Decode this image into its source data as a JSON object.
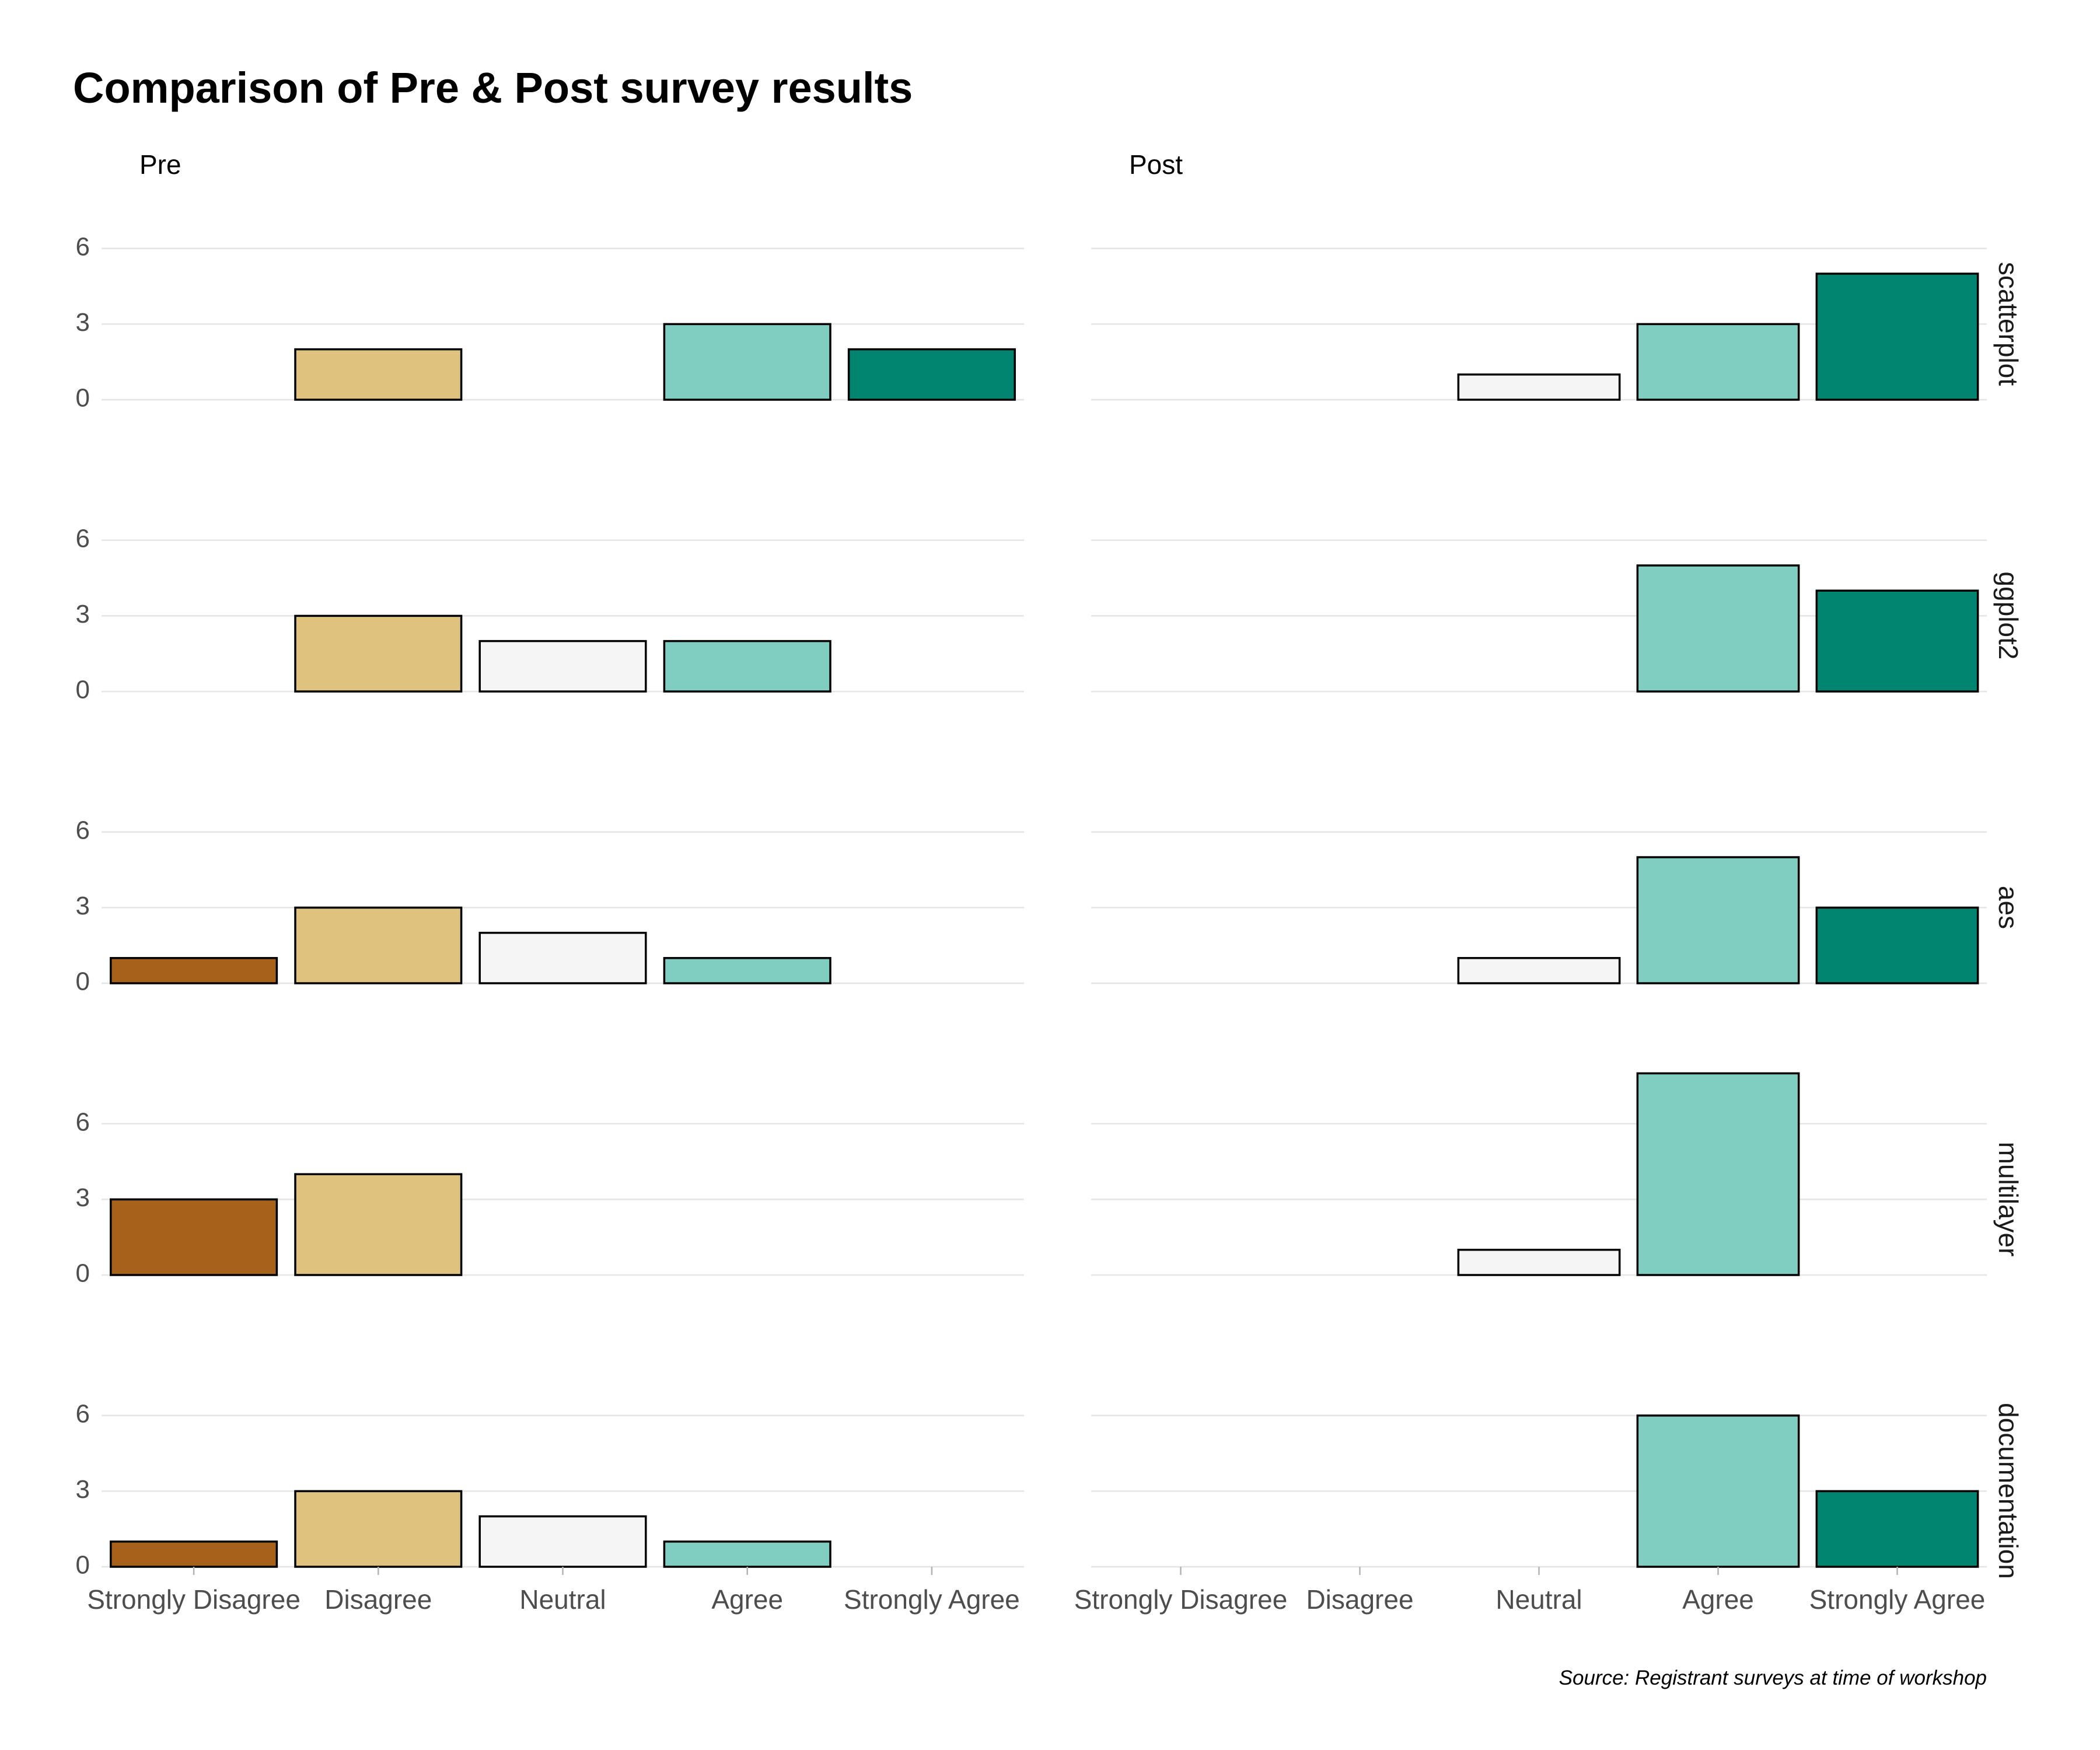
{
  "chart_data": {
    "type": "bar",
    "title": "Comparison of Pre & Post survey results",
    "caption": "Source: Registrant surveys at time of workshop",
    "categories": [
      "Strongly Disagree",
      "Disagree",
      "Neutral",
      "Agree",
      "Strongly Agree"
    ],
    "colors": {
      "Strongly Disagree": "#a6611a",
      "Disagree": "#dfc27d",
      "Neutral": "#f5f5f5",
      "Agree": "#80cdc1",
      "Strongly Agree": "#018571"
    },
    "columns": [
      "Pre",
      "Post"
    ],
    "rows": [
      "scatterplot",
      "ggplot2",
      "aes",
      "multilayer",
      "documentation"
    ],
    "yticks": [
      0,
      3,
      6
    ],
    "ylim": [
      0,
      8
    ],
    "grid": true,
    "legend": "none",
    "panels": [
      {
        "row": "scatterplot",
        "column": "Pre",
        "values": [
          0,
          2,
          0,
          3,
          2
        ]
      },
      {
        "row": "scatterplot",
        "column": "Post",
        "values": [
          0,
          0,
          1,
          3,
          5
        ]
      },
      {
        "row": "ggplot2",
        "column": "Pre",
        "values": [
          0,
          3,
          2,
          2,
          0
        ]
      },
      {
        "row": "ggplot2",
        "column": "Post",
        "values": [
          0,
          0,
          0,
          5,
          4
        ]
      },
      {
        "row": "aes",
        "column": "Pre",
        "values": [
          1,
          3,
          2,
          1,
          0
        ]
      },
      {
        "row": "aes",
        "column": "Post",
        "values": [
          0,
          0,
          1,
          5,
          3
        ]
      },
      {
        "row": "multilayer",
        "column": "Pre",
        "values": [
          3,
          4,
          0,
          0,
          0
        ]
      },
      {
        "row": "multilayer",
        "column": "Post",
        "values": [
          0,
          0,
          1,
          8,
          0
        ]
      },
      {
        "row": "documentation",
        "column": "Pre",
        "values": [
          1,
          3,
          2,
          1,
          0
        ]
      },
      {
        "row": "documentation",
        "column": "Post",
        "values": [
          0,
          0,
          0,
          6,
          3
        ]
      }
    ]
  }
}
